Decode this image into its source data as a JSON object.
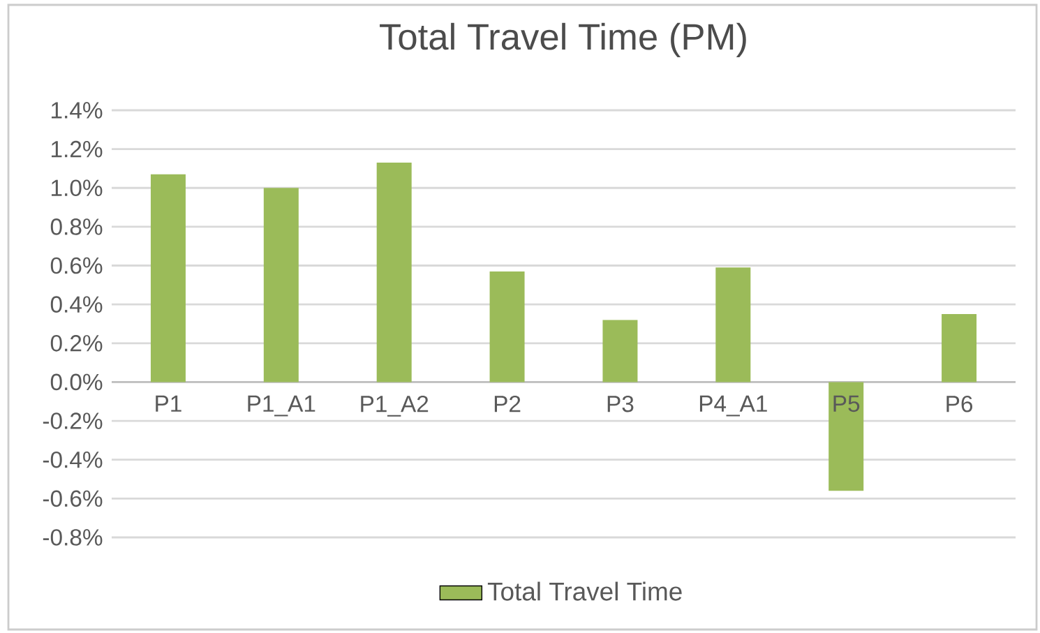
{
  "chart_data": {
    "type": "bar",
    "title": "Total Travel Time (PM)",
    "categories": [
      "P1",
      "P1_A1",
      "P1_A2",
      "P2",
      "P3",
      "P4_A1",
      "P5",
      "P6"
    ],
    "series": [
      {
        "name": "Total Travel Time",
        "color": "#9bbb59",
        "values": [
          1.07,
          1.0,
          1.13,
          0.57,
          0.32,
          0.59,
          -0.56,
          0.35
        ]
      }
    ],
    "ylim": [
      -0.8,
      1.4
    ],
    "yticks": [
      {
        "value": -0.8,
        "label": "-0.8%"
      },
      {
        "value": -0.6,
        "label": "-0.6%"
      },
      {
        "value": -0.4,
        "label": "-0.4%"
      },
      {
        "value": -0.2,
        "label": "-0.2%"
      },
      {
        "value": 0,
        "label": "0.0%"
      },
      {
        "value": 0.2,
        "label": "0.2%"
      },
      {
        "value": 0.4,
        "label": "0.4%"
      },
      {
        "value": 0.6,
        "label": "0.6%"
      },
      {
        "value": 0.8,
        "label": "0.8%"
      },
      {
        "value": 1.0,
        "label": "1.0%"
      },
      {
        "value": 1.2,
        "label": "1.2%"
      },
      {
        "value": 1.4,
        "label": "1.4%"
      }
    ],
    "grid": "y",
    "legend": "bottom"
  }
}
